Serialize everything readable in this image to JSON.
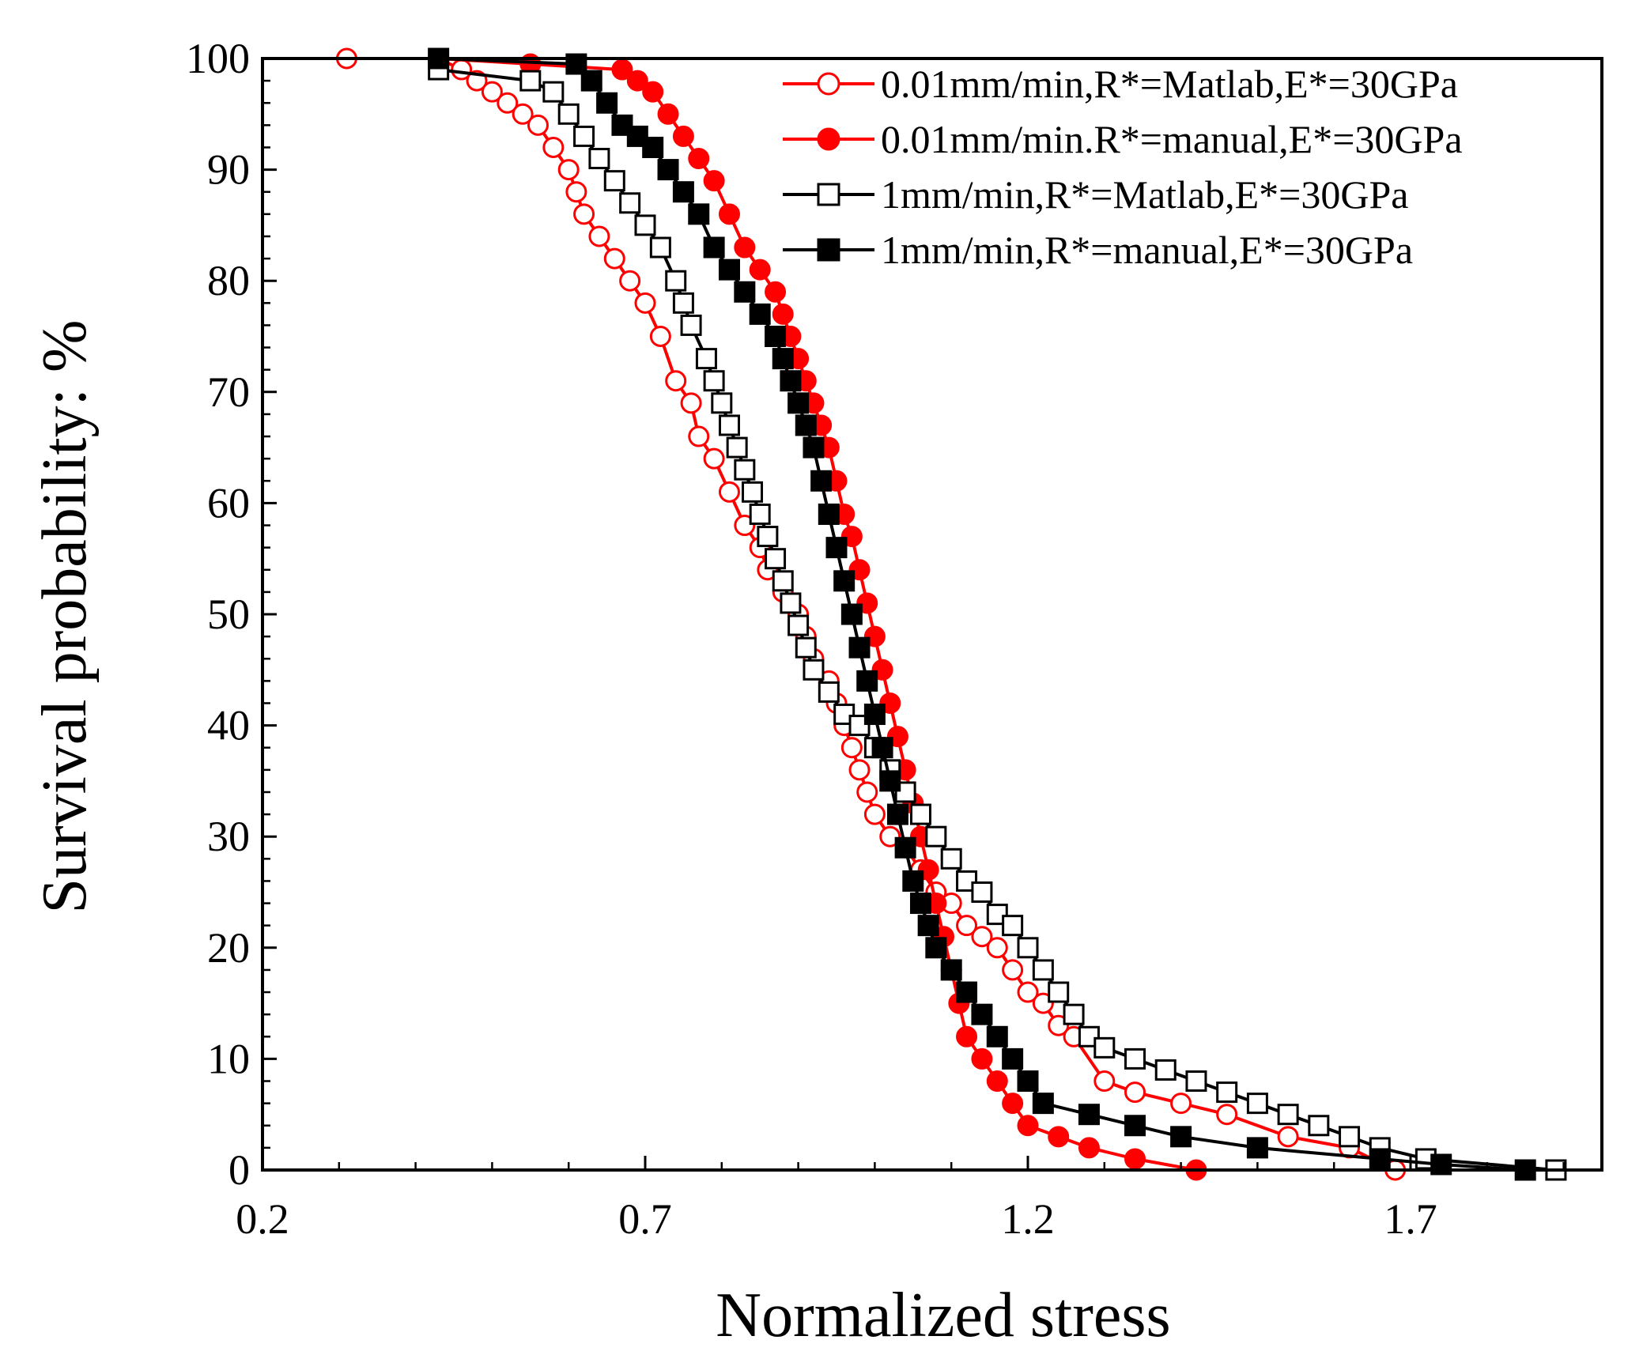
{
  "chart_data": {
    "type": "line",
    "title": "",
    "xlabel": "Normalized stress",
    "ylabel": "Survival probability: %",
    "xlim": [
      0.2,
      1.95
    ],
    "ylim": [
      0,
      100
    ],
    "xticks": [
      0.2,
      0.7,
      1.2,
      1.7
    ],
    "xtick_labels": [
      "0.2",
      "0.7",
      "1.2",
      "1.7"
    ],
    "yticks": [
      0,
      10,
      20,
      30,
      40,
      50,
      60,
      70,
      80,
      90,
      100
    ],
    "ytick_labels": [
      "0",
      "10",
      "20",
      "30",
      "40",
      "50",
      "60",
      "70",
      "80",
      "90",
      "100"
    ],
    "legend_position": "top-right",
    "grid": false,
    "series": [
      {
        "name": "0.01mm/min,R*=Matlab,E*=30GPa",
        "color": "#ff0000",
        "marker": "circle",
        "filled": false,
        "points": [
          [
            0.31,
            100
          ],
          [
            0.43,
            100
          ],
          [
            0.46,
            99
          ],
          [
            0.48,
            98
          ],
          [
            0.5,
            97
          ],
          [
            0.52,
            96
          ],
          [
            0.54,
            95
          ],
          [
            0.56,
            94
          ],
          [
            0.58,
            92
          ],
          [
            0.6,
            90
          ],
          [
            0.61,
            88
          ],
          [
            0.62,
            86
          ],
          [
            0.64,
            84
          ],
          [
            0.66,
            82
          ],
          [
            0.68,
            80
          ],
          [
            0.7,
            78
          ],
          [
            0.72,
            75
          ],
          [
            0.74,
            71
          ],
          [
            0.76,
            69
          ],
          [
            0.77,
            66
          ],
          [
            0.79,
            64
          ],
          [
            0.81,
            61
          ],
          [
            0.83,
            58
          ],
          [
            0.85,
            56
          ],
          [
            0.86,
            54
          ],
          [
            0.88,
            52
          ],
          [
            0.9,
            50
          ],
          [
            0.91,
            48
          ],
          [
            0.92,
            46
          ],
          [
            0.94,
            44
          ],
          [
            0.95,
            42
          ],
          [
            0.96,
            40
          ],
          [
            0.97,
            38
          ],
          [
            0.98,
            36
          ],
          [
            0.99,
            34
          ],
          [
            1,
            32
          ],
          [
            1.02,
            30
          ],
          [
            1.04,
            29
          ],
          [
            1.06,
            27
          ],
          [
            1.08,
            25
          ],
          [
            1.1,
            24
          ],
          [
            1.12,
            22
          ],
          [
            1.14,
            21
          ],
          [
            1.16,
            20
          ],
          [
            1.18,
            18
          ],
          [
            1.2,
            16
          ],
          [
            1.22,
            15
          ],
          [
            1.24,
            13
          ],
          [
            1.26,
            12
          ],
          [
            1.3,
            8
          ],
          [
            1.34,
            7
          ],
          [
            1.4,
            6
          ],
          [
            1.46,
            5
          ],
          [
            1.54,
            3
          ],
          [
            1.62,
            2
          ],
          [
            1.68,
            0
          ]
        ]
      },
      {
        "name": "0.01mm/min.R*=manual,E*=30GPa",
        "color": "#ff0000",
        "marker": "circle",
        "filled": true,
        "points": [
          [
            0.43,
            100
          ],
          [
            0.55,
            99.5
          ],
          [
            0.67,
            99
          ],
          [
            0.69,
            98
          ],
          [
            0.71,
            97
          ],
          [
            0.73,
            95
          ],
          [
            0.75,
            93
          ],
          [
            0.77,
            91
          ],
          [
            0.79,
            89
          ],
          [
            0.81,
            86
          ],
          [
            0.83,
            83
          ],
          [
            0.85,
            81
          ],
          [
            0.87,
            79
          ],
          [
            0.88,
            77
          ],
          [
            0.89,
            75
          ],
          [
            0.9,
            73
          ],
          [
            0.91,
            71
          ],
          [
            0.92,
            69
          ],
          [
            0.93,
            67
          ],
          [
            0.94,
            65
          ],
          [
            0.95,
            62
          ],
          [
            0.96,
            59
          ],
          [
            0.97,
            57
          ],
          [
            0.98,
            54
          ],
          [
            0.99,
            51
          ],
          [
            1,
            48
          ],
          [
            1.01,
            45
          ],
          [
            1.02,
            42
          ],
          [
            1.03,
            39
          ],
          [
            1.04,
            36
          ],
          [
            1.05,
            33
          ],
          [
            1.06,
            30
          ],
          [
            1.07,
            27
          ],
          [
            1.08,
            24
          ],
          [
            1.09,
            21
          ],
          [
            1.1,
            18
          ],
          [
            1.11,
            15
          ],
          [
            1.12,
            12
          ],
          [
            1.14,
            10
          ],
          [
            1.16,
            8
          ],
          [
            1.18,
            6
          ],
          [
            1.2,
            4
          ],
          [
            1.24,
            3
          ],
          [
            1.28,
            2
          ],
          [
            1.34,
            1
          ],
          [
            1.42,
            0
          ]
        ]
      },
      {
        "name": "1mm/min,R*=Matlab,E*=30GPa",
        "color": "#000000",
        "marker": "square",
        "filled": false,
        "points": [
          [
            0.43,
            99
          ],
          [
            0.55,
            98
          ],
          [
            0.58,
            97
          ],
          [
            0.6,
            95
          ],
          [
            0.62,
            93
          ],
          [
            0.64,
            91
          ],
          [
            0.66,
            89
          ],
          [
            0.68,
            87
          ],
          [
            0.7,
            85
          ],
          [
            0.72,
            83
          ],
          [
            0.74,
            80
          ],
          [
            0.75,
            78
          ],
          [
            0.76,
            76
          ],
          [
            0.78,
            73
          ],
          [
            0.79,
            71
          ],
          [
            0.8,
            69
          ],
          [
            0.81,
            67
          ],
          [
            0.82,
            65
          ],
          [
            0.83,
            63
          ],
          [
            0.84,
            61
          ],
          [
            0.85,
            59
          ],
          [
            0.86,
            57
          ],
          [
            0.87,
            55
          ],
          [
            0.88,
            53
          ],
          [
            0.89,
            51
          ],
          [
            0.9,
            49
          ],
          [
            0.91,
            47
          ],
          [
            0.92,
            45
          ],
          [
            0.94,
            43
          ],
          [
            0.96,
            41
          ],
          [
            0.98,
            40
          ],
          [
            1,
            38
          ],
          [
            1.02,
            36
          ],
          [
            1.04,
            34
          ],
          [
            1.06,
            32
          ],
          [
            1.08,
            30
          ],
          [
            1.1,
            28
          ],
          [
            1.12,
            26
          ],
          [
            1.14,
            25
          ],
          [
            1.16,
            23
          ],
          [
            1.18,
            22
          ],
          [
            1.2,
            20
          ],
          [
            1.22,
            18
          ],
          [
            1.24,
            16
          ],
          [
            1.26,
            14
          ],
          [
            1.28,
            12
          ],
          [
            1.3,
            11
          ],
          [
            1.34,
            10
          ],
          [
            1.38,
            9
          ],
          [
            1.42,
            8
          ],
          [
            1.46,
            7
          ],
          [
            1.5,
            6
          ],
          [
            1.54,
            5
          ],
          [
            1.58,
            4
          ],
          [
            1.62,
            3
          ],
          [
            1.66,
            2
          ],
          [
            1.72,
            1
          ],
          [
            1.89,
            0
          ]
        ]
      },
      {
        "name": "1mm/min,R*=manual,E*=30GPa",
        "color": "#000000",
        "marker": "square",
        "filled": true,
        "points": [
          [
            0.43,
            100
          ],
          [
            0.61,
            99.5
          ],
          [
            0.63,
            98
          ],
          [
            0.65,
            96
          ],
          [
            0.67,
            94
          ],
          [
            0.69,
            93
          ],
          [
            0.71,
            92
          ],
          [
            0.73,
            90
          ],
          [
            0.75,
            88
          ],
          [
            0.77,
            86
          ],
          [
            0.79,
            83
          ],
          [
            0.81,
            81
          ],
          [
            0.83,
            79
          ],
          [
            0.85,
            77
          ],
          [
            0.87,
            75
          ],
          [
            0.88,
            73
          ],
          [
            0.89,
            71
          ],
          [
            0.9,
            69
          ],
          [
            0.91,
            67
          ],
          [
            0.92,
            65
          ],
          [
            0.93,
            62
          ],
          [
            0.94,
            59
          ],
          [
            0.95,
            56
          ],
          [
            0.96,
            53
          ],
          [
            0.97,
            50
          ],
          [
            0.98,
            47
          ],
          [
            0.99,
            44
          ],
          [
            1,
            41
          ],
          [
            1.01,
            38
          ],
          [
            1.02,
            35
          ],
          [
            1.03,
            32
          ],
          [
            1.04,
            29
          ],
          [
            1.05,
            26
          ],
          [
            1.06,
            24
          ],
          [
            1.07,
            22
          ],
          [
            1.08,
            20
          ],
          [
            1.1,
            18
          ],
          [
            1.12,
            16
          ],
          [
            1.14,
            14
          ],
          [
            1.16,
            12
          ],
          [
            1.18,
            10
          ],
          [
            1.2,
            8
          ],
          [
            1.22,
            6
          ],
          [
            1.28,
            5
          ],
          [
            1.34,
            4
          ],
          [
            1.4,
            3
          ],
          [
            1.5,
            2
          ],
          [
            1.66,
            1
          ],
          [
            1.74,
            0.5
          ],
          [
            1.85,
            0
          ]
        ]
      }
    ]
  }
}
